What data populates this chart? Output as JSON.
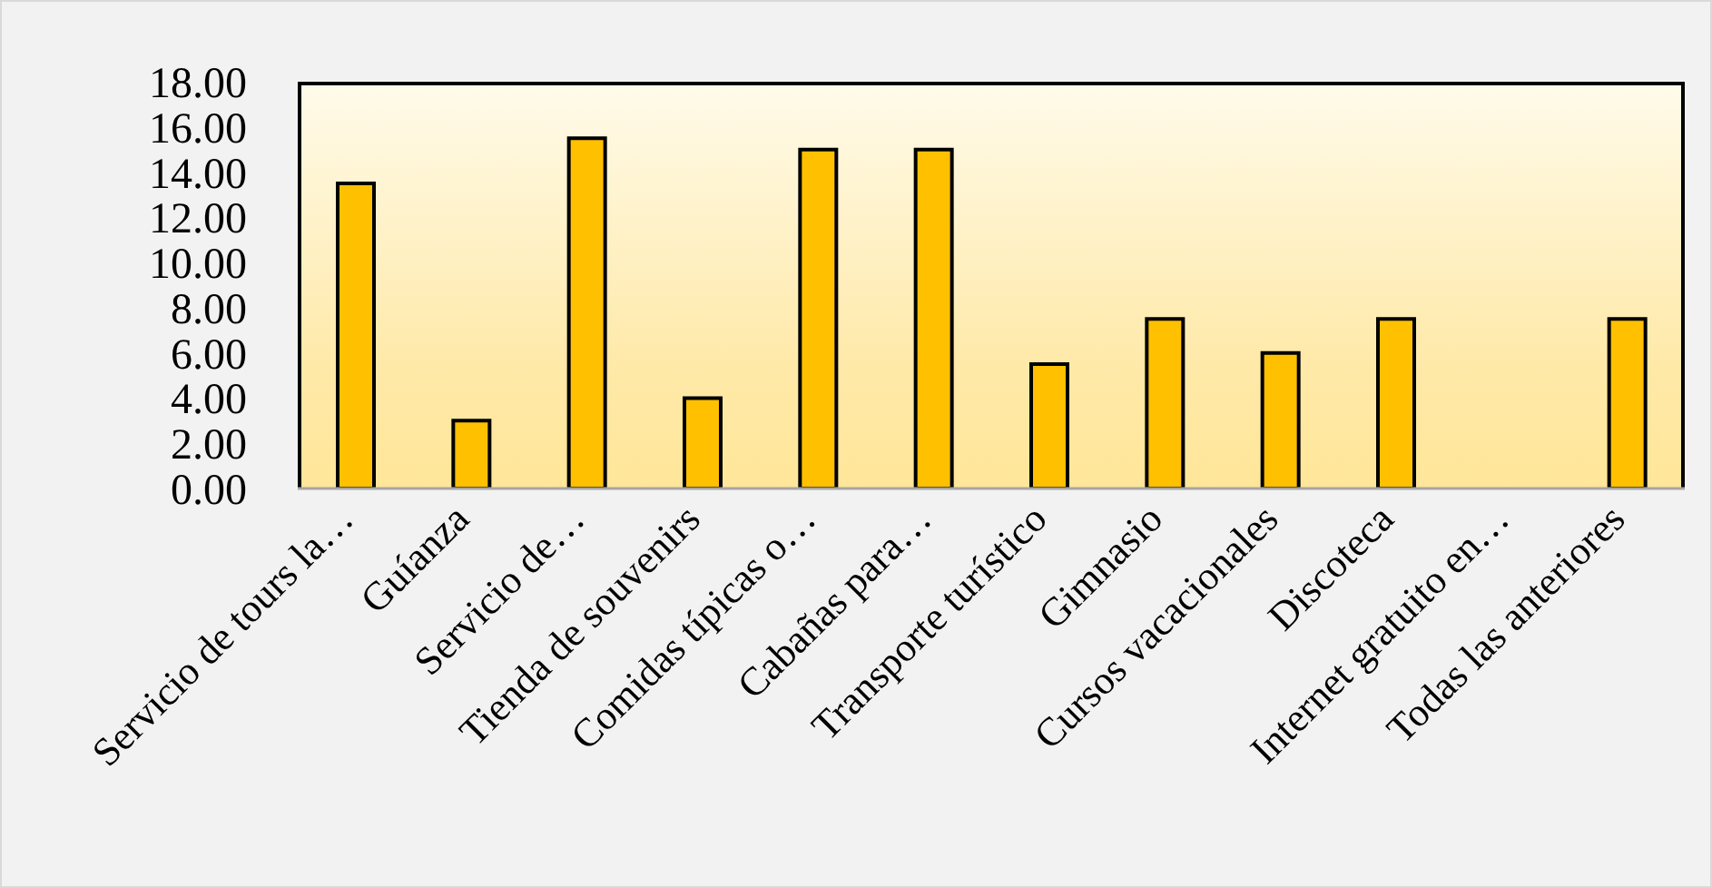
{
  "chart_data": {
    "type": "bar",
    "categories": [
      "Servicio de tours la…",
      "Guíanza",
      "Servicio de…",
      "Tienda de souvenirs",
      "Comidas típicas o…",
      "Cabañas para…",
      "Transporte turístico",
      "Gimnasio",
      "Cursos vacacionales",
      "Discoteca",
      "Internet gratuito en…",
      "Todas las anteriores"
    ],
    "values": [
      13.5,
      3.0,
      15.5,
      4.0,
      15.0,
      15.0,
      5.5,
      7.5,
      6.0,
      7.5,
      0,
      7.5
    ],
    "color": "#ffc000",
    "ylim": [
      0,
      18
    ],
    "yticks": [
      {
        "value": 0,
        "label": "0.00"
      },
      {
        "value": 2,
        "label": "2.00"
      },
      {
        "value": 4,
        "label": "4.00"
      },
      {
        "value": 6,
        "label": "6.00"
      },
      {
        "value": 8,
        "label": "8.00"
      },
      {
        "value": 10,
        "label": "10.00"
      },
      {
        "value": 12,
        "label": "12.00"
      },
      {
        "value": 14,
        "label": "14.00"
      },
      {
        "value": 16,
        "label": "16.00"
      },
      {
        "value": 18,
        "label": "18.00"
      }
    ],
    "grid": false,
    "legend": false
  }
}
